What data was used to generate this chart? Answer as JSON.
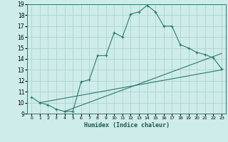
{
  "xlabel": "Humidex (Indice chaleur)",
  "bg_color": "#ceecea",
  "line_color": "#2a7a6e",
  "grid_color": "#aed4d0",
  "xlim": [
    -0.5,
    23.5
  ],
  "ylim": [
    9,
    19
  ],
  "xticks": [
    0,
    1,
    2,
    3,
    4,
    5,
    6,
    7,
    8,
    9,
    10,
    11,
    12,
    13,
    14,
    15,
    16,
    17,
    18,
    19,
    20,
    21,
    22,
    23
  ],
  "yticks": [
    9,
    10,
    11,
    12,
    13,
    14,
    15,
    16,
    17,
    18,
    19
  ],
  "curve1_x": [
    0,
    1,
    2,
    3,
    4,
    5,
    6,
    7,
    8,
    9,
    10,
    11,
    12,
    13,
    14,
    15,
    16,
    17,
    18,
    19,
    20,
    21,
    22,
    23
  ],
  "curve1_y": [
    10.5,
    10.0,
    9.8,
    9.4,
    9.2,
    9.2,
    11.9,
    12.1,
    14.3,
    14.3,
    16.4,
    16.0,
    18.1,
    18.3,
    18.9,
    18.3,
    17.0,
    17.0,
    15.3,
    15.0,
    14.6,
    14.4,
    14.1,
    13.1
  ],
  "curve2_x": [
    1,
    23
  ],
  "curve2_y": [
    10.0,
    13.0
  ],
  "curve3_x": [
    4,
    23
  ],
  "curve3_y": [
    9.2,
    14.5
  ]
}
